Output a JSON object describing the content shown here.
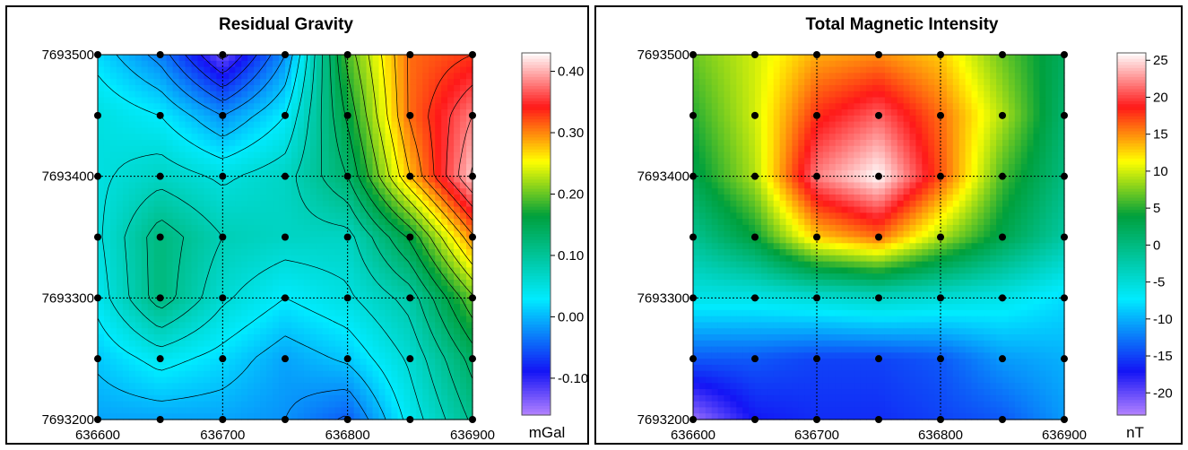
{
  "charts": [
    {
      "title": "Residual Gravity",
      "unit": "mGal",
      "x_ticks": [
        "636600",
        "636700",
        "636800",
        "636900"
      ],
      "y_ticks": [
        "7693500",
        "7693400",
        "7693300",
        "7693200"
      ],
      "colorbar_ticks": [
        "0.40",
        "0.30",
        "0.20",
        "0.10",
        "0.00",
        "-0.10"
      ]
    },
    {
      "title": "Total Magnetic Intensity",
      "unit": "nT",
      "x_ticks": [
        "636600",
        "636700",
        "636800",
        "636900"
      ],
      "y_ticks": [
        "7693500",
        "7693400",
        "7693300",
        "7693200"
      ],
      "colorbar_ticks": [
        "25",
        "20",
        "15",
        "10",
        "5",
        "0",
        "-5",
        "-10",
        "-15",
        "-20"
      ]
    }
  ],
  "chart_data": [
    {
      "type": "heatmap",
      "title": "Residual Gravity",
      "colorbar_label": "mGal",
      "contours": true,
      "xlim": [
        636600,
        636900
      ],
      "ylim": [
        7693200,
        7693500
      ],
      "zlim": [
        -0.16,
        0.43
      ],
      "x": [
        636600,
        636650,
        636700,
        636750,
        636800,
        636850,
        636900
      ],
      "y": [
        7693500,
        7693450,
        7693400,
        7693350,
        7693300,
        7693250,
        7693200
      ],
      "z": [
        [
          0.02,
          -0.03,
          -0.13,
          -0.02,
          0.19,
          0.31,
          0.33
        ],
        [
          0.05,
          0.03,
          -0.02,
          0.03,
          0.16,
          0.31,
          0.38
        ],
        [
          0.05,
          0.07,
          0.05,
          0.07,
          0.13,
          0.28,
          0.41
        ],
        [
          0.05,
          0.12,
          0.08,
          0.07,
          0.07,
          0.16,
          0.3
        ],
        [
          0.04,
          0.12,
          0.06,
          0.03,
          0.05,
          0.09,
          0.2
        ],
        [
          0.01,
          0.04,
          0.02,
          -0.01,
          0.01,
          0.06,
          0.14
        ],
        [
          -0.01,
          -0.01,
          -0.01,
          -0.02,
          -0.05,
          0.04,
          0.11
        ]
      ],
      "stations": {
        "x": [
          636600,
          636650,
          636700,
          636750,
          636800,
          636850,
          636900
        ],
        "y": [
          7693500,
          7693450,
          7693400,
          7693350,
          7693300,
          7693250,
          7693200
        ]
      }
    },
    {
      "type": "heatmap",
      "title": "Total Magnetic Intensity",
      "colorbar_label": "nT",
      "contours": false,
      "xlim": [
        636600,
        636900
      ],
      "ylim": [
        7693200,
        7693500
      ],
      "zlim": [
        -23,
        26
      ],
      "x": [
        636600,
        636650,
        636700,
        636750,
        636800,
        636850,
        636900
      ],
      "y": [
        7693500,
        7693450,
        7693400,
        7693350,
        7693300,
        7693250,
        7693200
      ],
      "z": [
        [
          7,
          10,
          14,
          15,
          13,
          7,
          2
        ],
        [
          5,
          10,
          18,
          21,
          16,
          9,
          1
        ],
        [
          3,
          9,
          22,
          26,
          17,
          6,
          0
        ],
        [
          -1,
          4,
          13,
          16,
          9,
          3,
          -2
        ],
        [
          -6,
          -6,
          -5,
          -4,
          -5,
          -6,
          -8
        ],
        [
          -14,
          -14,
          -15,
          -15,
          -14,
          -11,
          -10
        ],
        [
          -22,
          -17,
          -16,
          -16,
          -15,
          -14,
          -11
        ]
      ],
      "stations": {
        "x": [
          636600,
          636650,
          636700,
          636750,
          636800,
          636850,
          636900
        ],
        "y": [
          7693500,
          7693450,
          7693400,
          7693350,
          7693300,
          7693250,
          7693200
        ]
      }
    }
  ]
}
